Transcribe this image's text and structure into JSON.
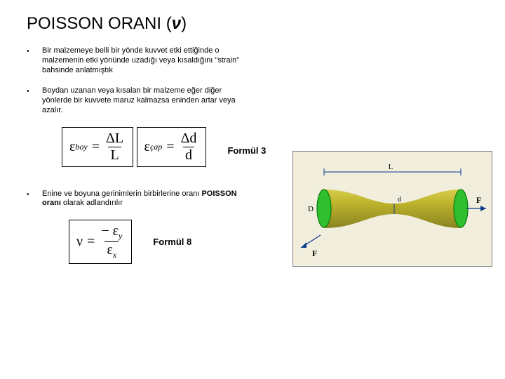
{
  "title_prefix": "POISSON ORANI (",
  "title_symbol": "ν",
  "title_suffix": ")",
  "bullets": [
    "Bir malzemeye belli bir yönde kuvvet etki ettiğinde o malzemenin etki yönünde uzadığı veya kısaldığını \"strain\" bahsinde anlatmıştık",
    "Boydan uzanan veya kısalan bir malzeme eğer diğer yönlerde bir kuvvete maruz kalmazsa eninden artar veya azalır.",
    "Enine ve boyuna gerinimlerin birbirlerine oranı POISSON oranı olarak adlandırılır"
  ],
  "formula3_label": "Formül 3",
  "formula8_label": "Formül 8",
  "formulas": {
    "eps_boy_lhs": "ε",
    "eps_boy_sub": "boy",
    "eps_cap_sub": "çap",
    "delta_L": "ΔL",
    "L": "L",
    "delta_d": "Δd",
    "d": "d",
    "nu": "ν",
    "eps_y": "ε",
    "eps_y_sub": "y",
    "eps_x": "ε",
    "eps_x_sub": "x",
    "minus": "−",
    "equals": "="
  },
  "bold_span": "POISSON oranı",
  "diagram": {
    "bg": "#f1eede",
    "border": "#808080",
    "rod_main": "#beb42c",
    "rod_highlight": "#d7ce4d",
    "rod_shadow": "#8a8320",
    "end_fill": "#2fbf2f",
    "end_stroke": "#0a7a0a",
    "line": "#0b3a8a",
    "labels": {
      "L": "L",
      "d": "d",
      "D": "D",
      "F": "F"
    }
  }
}
